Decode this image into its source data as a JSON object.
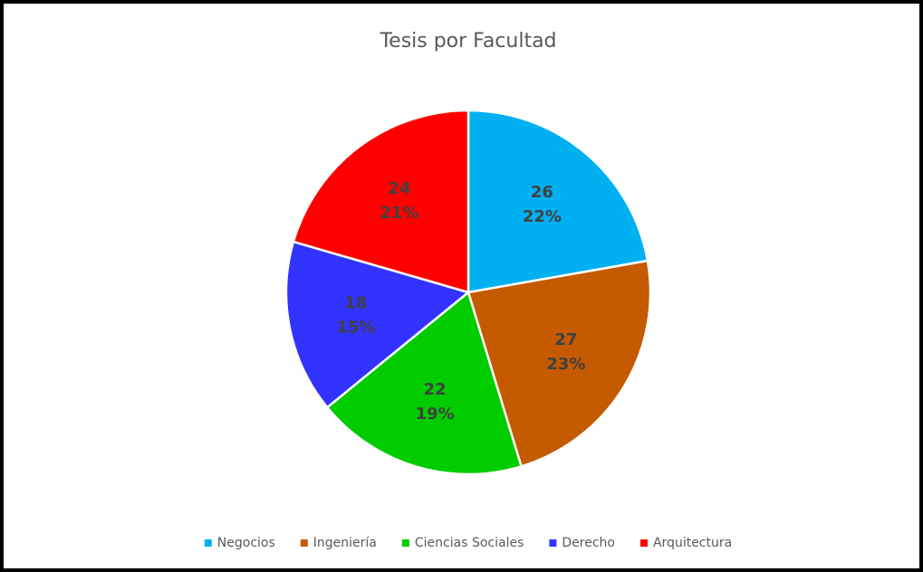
{
  "chart_data": {
    "type": "pie",
    "title": "Tesis por Facultad",
    "categories": [
      "Negocios",
      "Ingeniería",
      "Ciencias Sociales",
      "Derecho",
      "Arquitectura"
    ],
    "values": [
      26,
      27,
      22,
      18,
      24
    ],
    "percent_labels": [
      "22%",
      "23%",
      "19%",
      "15%",
      "21%"
    ],
    "colors": [
      "#00b0f0",
      "#c55a00",
      "#00cc00",
      "#3333ff",
      "#ff0000"
    ],
    "legend": "bottom"
  }
}
